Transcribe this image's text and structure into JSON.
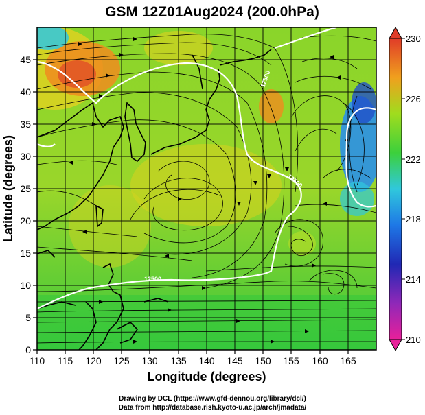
{
  "title": "GSM 12Z01Aug2024 (200.0hPa)",
  "x_axis": {
    "label": "Longitude (degrees)",
    "range": [
      110,
      170
    ],
    "ticks": [
      "110",
      "115",
      "120",
      "125",
      "130",
      "135",
      "140",
      "145",
      "150",
      "155",
      "160",
      "165"
    ]
  },
  "y_axis": {
    "label": "Latitude  (degrees)",
    "range": [
      0,
      50
    ],
    "ticks": [
      "0",
      "5",
      "10",
      "15",
      "20",
      "25",
      "30",
      "35",
      "40",
      "45"
    ]
  },
  "colorbar": {
    "labels": [
      "230",
      "226",
      "222",
      "218",
      "214",
      "210"
    ],
    "range": [
      210,
      230
    ],
    "colors": [
      "#e8209a",
      "#2020b0",
      "#1e7ce8",
      "#32c8dc",
      "#3cd23c",
      "#8cdc1e",
      "#e6d21e",
      "#f08c1e",
      "#e03c28"
    ]
  },
  "contours": [
    {
      "label": "12500"
    },
    {
      "label": "12500"
    },
    {
      "label": "12500"
    }
  ],
  "credits": {
    "line1": "Drawing by DCL (https://www.gfd-dennou.org/library/dcl/)",
    "line2": "Data from http://database.rish.kyoto-u.ac.jp/arch/jmadata/"
  }
}
